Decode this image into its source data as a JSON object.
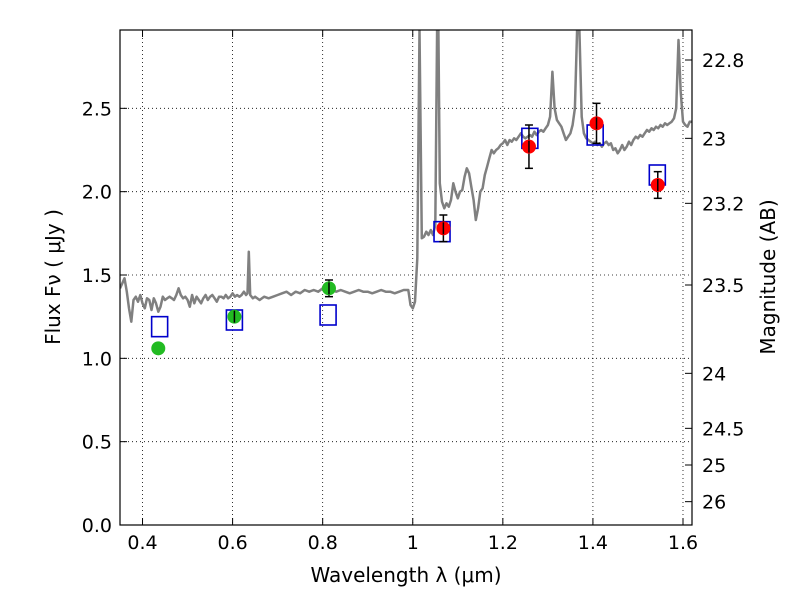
{
  "chart_data": {
    "type": "scatter",
    "xlabel": "Wavelength  λ (μm)",
    "ylabel": "Flux  Fν  ( μJy )",
    "y2label": "Magnitude (AB)",
    "xlim": [
      0.35,
      1.62
    ],
    "ylim": [
      0.0,
      2.97
    ],
    "grid": true,
    "x_ticks": [
      {
        "value": 0.4,
        "label": "0.4"
      },
      {
        "value": 0.6,
        "label": "0.6"
      },
      {
        "value": 0.8,
        "label": "0.8"
      },
      {
        "value": 1.0,
        "label": "1"
      },
      {
        "value": 1.2,
        "label": "1.2"
      },
      {
        "value": 1.4,
        "label": "1.4"
      },
      {
        "value": 1.6,
        "label": "1.6"
      }
    ],
    "y_ticks": [
      {
        "value": 0.0,
        "label": "0.0"
      },
      {
        "value": 0.5,
        "label": "0.5"
      },
      {
        "value": 1.0,
        "label": "1.0"
      },
      {
        "value": 1.5,
        "label": "1.5"
      },
      {
        "value": 2.0,
        "label": "2.0"
      },
      {
        "value": 2.5,
        "label": "2.5"
      }
    ],
    "y2_ticks": [
      {
        "flux": 2.79,
        "label": "22.8"
      },
      {
        "flux": 2.32,
        "label": "23"
      },
      {
        "flux": 1.93,
        "label": "23.2"
      },
      {
        "flux": 1.44,
        "label": "23.5"
      },
      {
        "flux": 0.91,
        "label": "24"
      },
      {
        "flux": 0.58,
        "label": "24.5"
      },
      {
        "flux": 0.36,
        "label": "25"
      },
      {
        "flux": 0.14,
        "label": "26"
      }
    ],
    "colors": {
      "spectrum": "#808080",
      "green_points": "#22bb22",
      "red_points": "#ff0000",
      "model_boxes": "#0000cc",
      "error_bars": "#000000"
    },
    "series": [
      {
        "kind": "spectrum_line",
        "points": [
          [
            0.35,
            1.42
          ],
          [
            0.355,
            1.45
          ],
          [
            0.36,
            1.48
          ],
          [
            0.365,
            1.4
          ],
          [
            0.37,
            1.3
          ],
          [
            0.375,
            1.22
          ],
          [
            0.38,
            1.35
          ],
          [
            0.385,
            1.37
          ],
          [
            0.39,
            1.34
          ],
          [
            0.395,
            1.38
          ],
          [
            0.4,
            1.33
          ],
          [
            0.405,
            1.3
          ],
          [
            0.41,
            1.36
          ],
          [
            0.415,
            1.35
          ],
          [
            0.42,
            1.29
          ],
          [
            0.425,
            1.36
          ],
          [
            0.43,
            1.33
          ],
          [
            0.435,
            1.28
          ],
          [
            0.44,
            1.31
          ],
          [
            0.445,
            1.37
          ],
          [
            0.45,
            1.35
          ],
          [
            0.455,
            1.36
          ],
          [
            0.46,
            1.37
          ],
          [
            0.465,
            1.36
          ],
          [
            0.47,
            1.35
          ],
          [
            0.475,
            1.38
          ],
          [
            0.48,
            1.42
          ],
          [
            0.485,
            1.38
          ],
          [
            0.49,
            1.36
          ],
          [
            0.495,
            1.37
          ],
          [
            0.5,
            1.35
          ],
          [
            0.505,
            1.31
          ],
          [
            0.51,
            1.38
          ],
          [
            0.515,
            1.33
          ],
          [
            0.52,
            1.37
          ],
          [
            0.525,
            1.35
          ],
          [
            0.53,
            1.33
          ],
          [
            0.535,
            1.36
          ],
          [
            0.54,
            1.38
          ],
          [
            0.545,
            1.35
          ],
          [
            0.55,
            1.37
          ],
          [
            0.555,
            1.38
          ],
          [
            0.56,
            1.36
          ],
          [
            0.565,
            1.34
          ],
          [
            0.57,
            1.37
          ],
          [
            0.575,
            1.37
          ],
          [
            0.58,
            1.36
          ],
          [
            0.585,
            1.38
          ],
          [
            0.59,
            1.36
          ],
          [
            0.595,
            1.37
          ],
          [
            0.6,
            1.39
          ],
          [
            0.605,
            1.37
          ],
          [
            0.61,
            1.38
          ],
          [
            0.615,
            1.37
          ],
          [
            0.62,
            1.38
          ],
          [
            0.625,
            1.4
          ],
          [
            0.63,
            1.38
          ],
          [
            0.633,
            1.39
          ],
          [
            0.636,
            1.64
          ],
          [
            0.639,
            1.38
          ],
          [
            0.645,
            1.36
          ],
          [
            0.65,
            1.37
          ],
          [
            0.66,
            1.35
          ],
          [
            0.67,
            1.37
          ],
          [
            0.68,
            1.36
          ],
          [
            0.69,
            1.37
          ],
          [
            0.7,
            1.38
          ],
          [
            0.71,
            1.39
          ],
          [
            0.72,
            1.4
          ],
          [
            0.73,
            1.38
          ],
          [
            0.74,
            1.4
          ],
          [
            0.75,
            1.39
          ],
          [
            0.76,
            1.41
          ],
          [
            0.77,
            1.4
          ],
          [
            0.78,
            1.41
          ],
          [
            0.79,
            1.4
          ],
          [
            0.8,
            1.42
          ],
          [
            0.81,
            1.4
          ],
          [
            0.82,
            1.41
          ],
          [
            0.83,
            1.4
          ],
          [
            0.84,
            1.41
          ],
          [
            0.85,
            1.4
          ],
          [
            0.86,
            1.39
          ],
          [
            0.87,
            1.4
          ],
          [
            0.88,
            1.41
          ],
          [
            0.89,
            1.4
          ],
          [
            0.9,
            1.4
          ],
          [
            0.91,
            1.39
          ],
          [
            0.92,
            1.4
          ],
          [
            0.93,
            1.41
          ],
          [
            0.94,
            1.4
          ],
          [
            0.95,
            1.4
          ],
          [
            0.96,
            1.39
          ],
          [
            0.97,
            1.4
          ],
          [
            0.98,
            1.41
          ],
          [
            0.99,
            1.41
          ],
          [
            0.995,
            1.32
          ],
          [
            1.0,
            1.3
          ],
          [
            1.005,
            1.34
          ],
          [
            1.01,
            1.6
          ],
          [
            1.015,
            2.97
          ],
          [
            1.02,
            1.72
          ],
          [
            1.025,
            1.73
          ],
          [
            1.03,
            1.76
          ],
          [
            1.035,
            1.74
          ],
          [
            1.04,
            1.77
          ],
          [
            1.045,
            1.74
          ],
          [
            1.05,
            1.8
          ],
          [
            1.054,
            2.97
          ],
          [
            1.057,
            2.97
          ],
          [
            1.06,
            2.05
          ],
          [
            1.065,
            1.94
          ],
          [
            1.07,
            1.9
          ],
          [
            1.075,
            1.93
          ],
          [
            1.08,
            1.91
          ],
          [
            1.085,
            1.95
          ],
          [
            1.09,
            2.05
          ],
          [
            1.095,
            2.0
          ],
          [
            1.1,
            1.96
          ],
          [
            1.105,
            2.0
          ],
          [
            1.11,
            2.01
          ],
          [
            1.115,
            2.09
          ],
          [
            1.12,
            2.14
          ],
          [
            1.125,
            2.11
          ],
          [
            1.13,
            2.03
          ],
          [
            1.135,
            1.95
          ],
          [
            1.14,
            1.83
          ],
          [
            1.145,
            1.9
          ],
          [
            1.15,
            2.0
          ],
          [
            1.155,
            2.02
          ],
          [
            1.16,
            2.1
          ],
          [
            1.165,
            2.15
          ],
          [
            1.17,
            2.2
          ],
          [
            1.175,
            2.25
          ],
          [
            1.18,
            2.23
          ],
          [
            1.185,
            2.25
          ],
          [
            1.19,
            2.26
          ],
          [
            1.195,
            2.28
          ],
          [
            1.2,
            2.29
          ],
          [
            1.205,
            2.31
          ],
          [
            1.21,
            2.28
          ],
          [
            1.215,
            2.31
          ],
          [
            1.22,
            2.3
          ],
          [
            1.225,
            2.32
          ],
          [
            1.23,
            2.31
          ],
          [
            1.235,
            2.33
          ],
          [
            1.24,
            2.35
          ],
          [
            1.245,
            2.33
          ],
          [
            1.25,
            2.32
          ],
          [
            1.255,
            2.33
          ],
          [
            1.26,
            2.34
          ],
          [
            1.265,
            2.33
          ],
          [
            1.27,
            2.36
          ],
          [
            1.275,
            2.34
          ],
          [
            1.28,
            2.36
          ],
          [
            1.285,
            2.37
          ],
          [
            1.29,
            2.36
          ],
          [
            1.295,
            2.38
          ],
          [
            1.3,
            2.4
          ],
          [
            1.305,
            2.45
          ],
          [
            1.31,
            2.72
          ],
          [
            1.315,
            2.5
          ],
          [
            1.32,
            2.43
          ],
          [
            1.325,
            2.41
          ],
          [
            1.33,
            2.39
          ],
          [
            1.335,
            2.35
          ],
          [
            1.34,
            2.31
          ],
          [
            1.345,
            2.33
          ],
          [
            1.35,
            2.35
          ],
          [
            1.355,
            2.4
          ],
          [
            1.36,
            2.5
          ],
          [
            1.365,
            2.97
          ],
          [
            1.37,
            2.97
          ],
          [
            1.375,
            2.45
          ],
          [
            1.38,
            2.35
          ],
          [
            1.385,
            2.32
          ],
          [
            1.39,
            2.31
          ],
          [
            1.395,
            2.3
          ],
          [
            1.4,
            2.29
          ],
          [
            1.405,
            2.3
          ],
          [
            1.41,
            2.28
          ],
          [
            1.415,
            2.29
          ],
          [
            1.42,
            2.27
          ],
          [
            1.425,
            2.29
          ],
          [
            1.43,
            2.3
          ],
          [
            1.435,
            2.28
          ],
          [
            1.44,
            2.29
          ],
          [
            1.445,
            2.25
          ],
          [
            1.45,
            2.26
          ],
          [
            1.455,
            2.23
          ],
          [
            1.46,
            2.25
          ],
          [
            1.465,
            2.28
          ],
          [
            1.47,
            2.25
          ],
          [
            1.475,
            2.27
          ],
          [
            1.48,
            2.3
          ],
          [
            1.485,
            2.28
          ],
          [
            1.49,
            2.31
          ],
          [
            1.495,
            2.33
          ],
          [
            1.5,
            2.32
          ],
          [
            1.505,
            2.34
          ],
          [
            1.51,
            2.33
          ],
          [
            1.515,
            2.35
          ],
          [
            1.52,
            2.37
          ],
          [
            1.525,
            2.36
          ],
          [
            1.53,
            2.38
          ],
          [
            1.535,
            2.37
          ],
          [
            1.54,
            2.39
          ],
          [
            1.545,
            2.38
          ],
          [
            1.55,
            2.4
          ],
          [
            1.555,
            2.39
          ],
          [
            1.56,
            2.41
          ],
          [
            1.565,
            2.4
          ],
          [
            1.57,
            2.41
          ],
          [
            1.575,
            2.42
          ],
          [
            1.58,
            2.44
          ],
          [
            1.585,
            2.5
          ],
          [
            1.59,
            2.91
          ],
          [
            1.595,
            2.6
          ],
          [
            1.6,
            2.42
          ],
          [
            1.605,
            2.4
          ],
          [
            1.61,
            2.39
          ],
          [
            1.615,
            2.42
          ],
          [
            1.62,
            2.42
          ]
        ]
      },
      {
        "kind": "model_boxes",
        "points": [
          {
            "x": 0.438,
            "y": 1.19
          },
          {
            "x": 0.604,
            "y": 1.23
          },
          {
            "x": 0.812,
            "y": 1.26
          },
          {
            "x": 1.065,
            "y": 1.76
          },
          {
            "x": 1.26,
            "y": 2.32
          },
          {
            "x": 1.405,
            "y": 2.34
          },
          {
            "x": 1.543,
            "y": 2.1
          }
        ]
      },
      {
        "kind": "green_points",
        "points": [
          {
            "x": 0.435,
            "y": 1.06,
            "err": 0.0
          },
          {
            "x": 0.604,
            "y": 1.25,
            "err": 0.03
          },
          {
            "x": 0.814,
            "y": 1.42,
            "err": 0.05
          }
        ]
      },
      {
        "kind": "red_points",
        "points": [
          {
            "x": 1.068,
            "y": 1.78,
            "err": 0.08
          },
          {
            "x": 1.258,
            "y": 2.27,
            "err": 0.13
          },
          {
            "x": 1.408,
            "y": 2.41,
            "err": 0.12
          },
          {
            "x": 1.544,
            "y": 2.04,
            "err": 0.08
          }
        ]
      }
    ]
  }
}
